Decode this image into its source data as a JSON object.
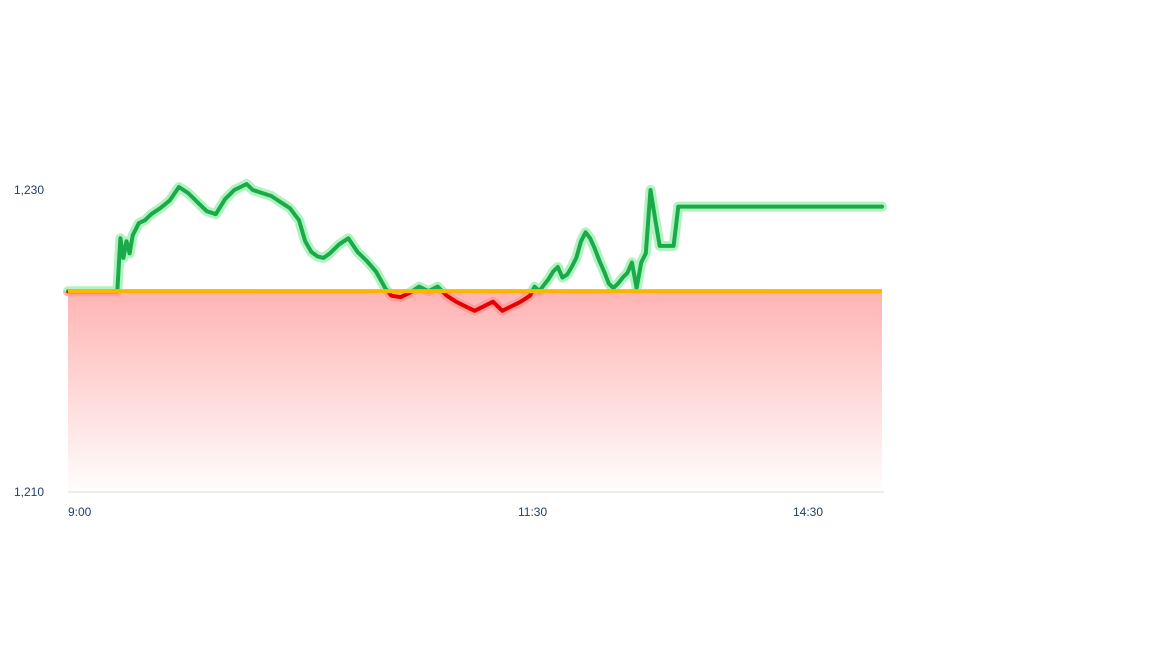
{
  "chart_data": {
    "type": "line",
    "title": "",
    "xlabel": "",
    "ylabel": "",
    "x_ticks": [
      "9:00",
      "11:30",
      "14:30"
    ],
    "y_ticks": [
      "1,230",
      "1,210"
    ],
    "ylim": [
      1210,
      1236
    ],
    "reference_value": 1223.3,
    "colors": {
      "above": "#1aaa4a",
      "below": "#e60000",
      "glow_above": "#9ef0b0",
      "glow_below": "#ff9a9a",
      "reference": "#ffb400",
      "area": "#ff8a8a",
      "axis": "#d9d9d9",
      "tick_text": "#1f3f66",
      "after_hours": "#2e9a48"
    },
    "series": [
      {
        "x": [
          "9:00",
          "9:16",
          "9:17",
          "9:18",
          "9:19",
          "9:20",
          "9:21",
          "9:23",
          "9:25",
          "9:27",
          "9:30",
          "9:33",
          "9:36",
          "9:39",
          "9:41",
          "9:43",
          "9:45",
          "9:48",
          "9:51",
          "9:54",
          "9:56",
          "9:58",
          "10:00",
          "10:03",
          "10:06",
          "10:09",
          "10:12",
          "10:15",
          "10:17",
          "10:19",
          "10:21",
          "10:23",
          "10:25",
          "10:28",
          "10:31",
          "10:34",
          "10:37",
          "10:40",
          "10:43",
          "10:45",
          "10:48",
          "10:51",
          "10:54",
          "10:57",
          "11:00",
          "11:03",
          "11:06",
          "11:09",
          "11:12",
          "11:15",
          "11:18",
          "11:21",
          "11:24",
          "11:27",
          "11:30",
          "11:33",
          "11:36",
          "11:39",
          "11:42",
          "11:45",
          "11:48",
          "11:51",
          "11:54",
          "11:57",
          "12:00",
          "12:03",
          "12:06",
          "12:09",
          "12:12",
          "12:15",
          "12:18",
          "12:21",
          "12:24",
          "12:27",
          "12:30",
          "12:33",
          "12:36",
          "12:39",
          "12:42",
          "12:45",
          "12:48",
          "12:51",
          "12:54",
          "12:57",
          "13:00",
          "13:03",
          "13:06",
          "13:09",
          "13:12",
          "13:15",
          "13:18",
          "13:21",
          "13:24",
          "13:27",
          "13:30",
          "13:33",
          "13:36",
          "13:39",
          "13:42",
          "13:45",
          "13:48",
          "13:51",
          "13:54",
          "13:57",
          "14:00",
          "14:03",
          "14:06",
          "14:09",
          "14:12",
          "14:15",
          "14:18",
          "14:21",
          "14:24",
          "14:27",
          "14:30"
        ],
        "values": [
          1223.3,
          1223.3,
          1226.8,
          1225.5,
          1226.6,
          1225.8,
          1227.0,
          1227.8,
          1228.0,
          1228.4,
          1228.8,
          1229.3,
          1230.2,
          1229.8,
          1229.4,
          1229.0,
          1228.6,
          1228.4,
          1229.4,
          1230.0,
          1230.2,
          1230.4,
          1230.0,
          1229.8,
          1229.6,
          1229.2,
          1228.8,
          1228.0,
          1226.6,
          1225.9,
          1225.6,
          1225.5,
          1225.8,
          1226.4,
          1226.8,
          1225.9,
          1225.3,
          1224.6,
          1223.5,
          1223.0,
          1222.9,
          1223.2,
          1223.6,
          1223.3,
          1223.6,
          1223.0,
          1222.6,
          1222.3,
          1222.0,
          1222.3,
          1222.6,
          1222.0,
          1222.3,
          1222.6,
          1223.0,
          1223.6,
          1223.3,
          1223.7,
          1224.1,
          1224.6,
          1224.9,
          1224.2,
          1224.4,
          1224.9,
          1225.5,
          1226.6,
          1227.2,
          1226.8,
          1226.1,
          1225.3,
          1224.6,
          1223.8,
          1223.5,
          1223.8,
          1224.2,
          1224.5,
          1225.2,
          1223.5,
          1225.2,
          1225.8,
          1230.0,
          1228.1,
          1226.3,
          1226.3,
          1226.3,
          1226.3,
          1228.9,
          1228.9,
          1228.9,
          1228.9,
          1228.9,
          1228.9,
          1228.9,
          1228.9,
          1228.9,
          1228.9,
          1228.9,
          1228.9,
          1228.9,
          1228.9,
          1228.9,
          1228.9,
          1228.9,
          1228.9,
          1228.9,
          1228.9,
          1228.9,
          1228.9,
          1228.9,
          1228.9,
          1228.9,
          1228.9,
          1228.9,
          1228.9,
          1228.9
        ]
      }
    ],
    "legend": "none",
    "grid": false
  }
}
